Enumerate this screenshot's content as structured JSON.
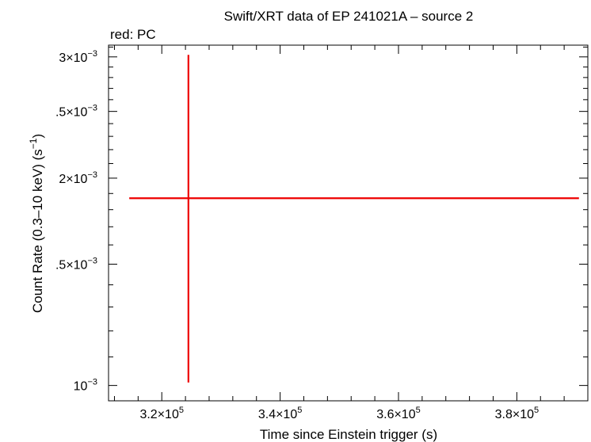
{
  "chart_data": {
    "type": "scatter",
    "title": "Swift/XRT data of EP 241021A – source 2",
    "subtitle": "red: PC",
    "xlabel": "Time since Einstein trigger (s)",
    "ylabel_main": "Count Rate (0.3–10 keV) (s",
    "ylabel_sup": "−1",
    "ylabel_end": ")",
    "xlim": [
      311000,
      392000
    ],
    "ylim": [
      0.00095,
      0.00312
    ],
    "x_scale": "linear",
    "y_scale": "log",
    "grid": false,
    "x_ticks": [
      {
        "value": 320000,
        "mant": "3.2×10",
        "exp": "5"
      },
      {
        "value": 340000,
        "mant": "3.4×10",
        "exp": "5"
      },
      {
        "value": 360000,
        "mant": "3.6×10",
        "exp": "5"
      },
      {
        "value": 380000,
        "mant": "3.8×10",
        "exp": "5"
      }
    ],
    "y_ticks": [
      {
        "value": 0.001,
        "mant": "10",
        "exp": "−3"
      },
      {
        "value": 0.0015,
        "mant": ".5×10",
        "exp": "−3"
      },
      {
        "value": 0.002,
        "mant": "2×10",
        "exp": "−3"
      },
      {
        "value": 0.0025,
        "mant": ".5×10",
        "exp": "−3"
      },
      {
        "value": 0.003,
        "mant": "3×10",
        "exp": "−3"
      }
    ],
    "series": [
      {
        "color": "#ee0000",
        "points": [
          {
            "x": 324500,
            "x_lo": 314500,
            "x_hi": 390500,
            "y": 0.00187,
            "y_lo": 0.00101,
            "y_hi": 0.00302
          }
        ]
      }
    ]
  }
}
